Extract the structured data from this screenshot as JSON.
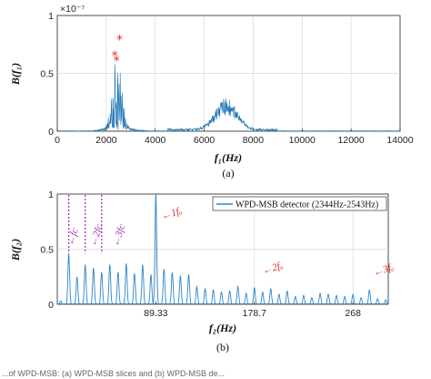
{
  "chart_data": [
    {
      "type": "line",
      "xlabel": "f₁(Hz)",
      "ylabel": "B(f₁)",
      "xlim": [
        0,
        14000
      ],
      "ylim": [
        0,
        1
      ],
      "xticks": [
        "0",
        "2000",
        "4000",
        "6000",
        "8000",
        "10000",
        "12000",
        "14000"
      ],
      "yticks": [
        "0",
        "0.5",
        "1"
      ],
      "exponent": "×10⁻⁷",
      "grid": true,
      "caption": "(a)",
      "peak_markers": [
        [
          2344,
          0.66
        ],
        [
          2420,
          0.62
        ],
        [
          2543,
          0.8
        ]
      ],
      "peak_clusters": [
        {
          "center": 2450,
          "height": 0.62
        },
        {
          "center": 6900,
          "height": 0.28
        }
      ],
      "colors": {
        "line": "#1f77b4",
        "marker": "#e8282c"
      }
    },
    {
      "type": "line",
      "xlabel": "f₂(Hz)",
      "ylabel": "B(f₂)",
      "xlim": [
        0,
        300
      ],
      "ylim": [
        0,
        1
      ],
      "xticks": [
        "89.33",
        "178.7",
        "268"
      ],
      "xtick_values": [
        89.33,
        178.7,
        268
      ],
      "yticks": [
        "0",
        "0.5",
        "1"
      ],
      "grid": true,
      "caption": "(b)",
      "legend": "WPD-MSB detector (2344Hz-2543Hz)",
      "legend_position": "top-right",
      "fundamental": 89.33,
      "line_spacing": 7.45,
      "peaks": [
        {
          "x": 3.0,
          "y": 0.03
        },
        {
          "x": 10.4,
          "y": 0.46
        },
        {
          "x": 17.9,
          "y": 0.25
        },
        {
          "x": 25.3,
          "y": 0.36
        },
        {
          "x": 32.8,
          "y": 0.33
        },
        {
          "x": 40.2,
          "y": 0.29
        },
        {
          "x": 47.6,
          "y": 0.36
        },
        {
          "x": 55.1,
          "y": 0.29
        },
        {
          "x": 62.5,
          "y": 0.37
        },
        {
          "x": 70.0,
          "y": 0.28
        },
        {
          "x": 77.4,
          "y": 0.36
        },
        {
          "x": 84.9,
          "y": 0.27
        },
        {
          "x": 89.33,
          "y": 1.0
        },
        {
          "x": 96.7,
          "y": 0.32
        },
        {
          "x": 104.2,
          "y": 0.29
        },
        {
          "x": 111.6,
          "y": 0.26
        },
        {
          "x": 119.1,
          "y": 0.27
        },
        {
          "x": 126.5,
          "y": 0.16
        },
        {
          "x": 134.0,
          "y": 0.14
        },
        {
          "x": 141.4,
          "y": 0.13
        },
        {
          "x": 148.8,
          "y": 0.11
        },
        {
          "x": 156.3,
          "y": 0.12
        },
        {
          "x": 163.7,
          "y": 0.16
        },
        {
          "x": 171.2,
          "y": 0.1
        },
        {
          "x": 178.7,
          "y": 0.15
        },
        {
          "x": 186.1,
          "y": 0.11
        },
        {
          "x": 193.5,
          "y": 0.14
        },
        {
          "x": 201.0,
          "y": 0.09
        },
        {
          "x": 208.4,
          "y": 0.12
        },
        {
          "x": 215.9,
          "y": 0.07
        },
        {
          "x": 223.3,
          "y": 0.08
        },
        {
          "x": 230.7,
          "y": 0.06
        },
        {
          "x": 238.2,
          "y": 0.1
        },
        {
          "x": 245.6,
          "y": 0.09
        },
        {
          "x": 253.1,
          "y": 0.08
        },
        {
          "x": 260.5,
          "y": 0.07
        },
        {
          "x": 268.0,
          "y": 0.09
        },
        {
          "x": 275.4,
          "y": 0.06
        },
        {
          "x": 282.9,
          "y": 0.13
        },
        {
          "x": 290.3,
          "y": 0.05
        },
        {
          "x": 297.7,
          "y": 0.04
        }
      ],
      "dotted_markers": [
        10.4,
        25.3,
        40.2
      ],
      "annotations": [
        {
          "text": "←1fₒ",
          "color": "#dd2222"
        },
        {
          "text": "←2fₒ",
          "color": "#dd2222"
        },
        {
          "text": "←3fₒ",
          "color": "#dd2222"
        },
        {
          "text": "←fᴄ",
          "color": "#9b2fae"
        },
        {
          "text": "←2fᴄ",
          "color": "#9b2fae"
        },
        {
          "text": "←3fᴄ",
          "color": "#9b2fae"
        }
      ],
      "colors": {
        "line": "#2e86c9",
        "marker": "#b02fc0"
      }
    }
  ],
  "footer_text": "...of WPD-MSB: (a) WPD-MSB slices and (b) WPD-MSB de..."
}
